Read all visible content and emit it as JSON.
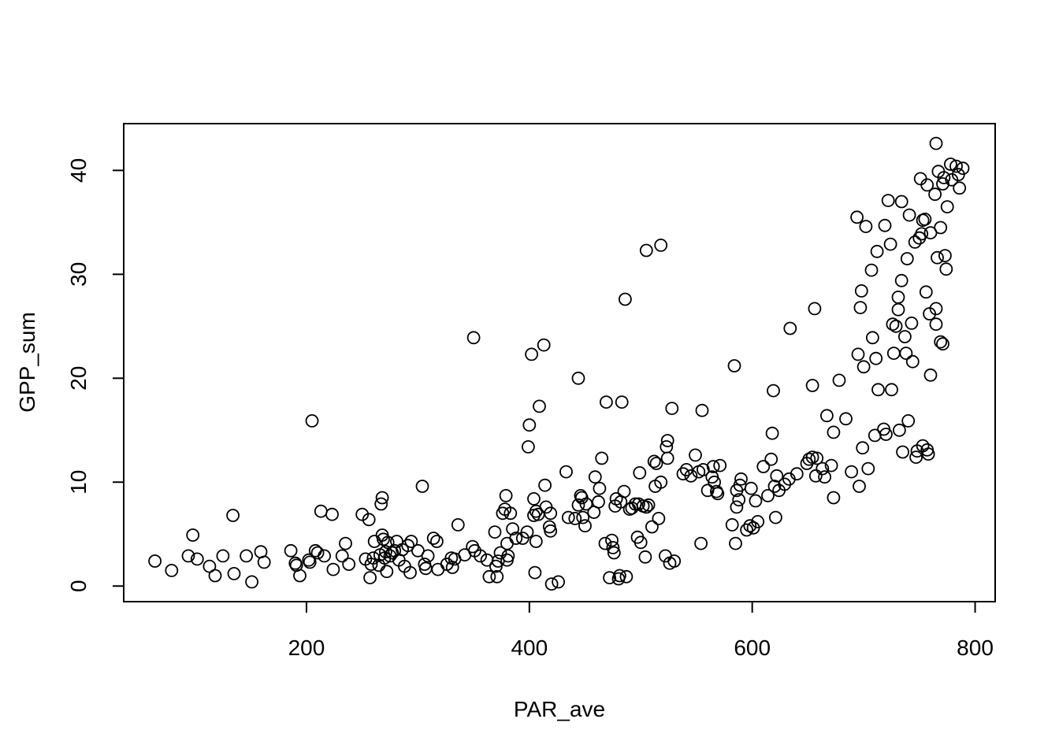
{
  "chart_data": {
    "type": "scatter",
    "title": "",
    "xlabel": "PAR_ave",
    "ylabel": "GPP_sum",
    "xlim": [
      36,
      818
    ],
    "ylim": [
      -1.5,
      44.5
    ],
    "x_ticks": [
      200,
      400,
      600,
      800
    ],
    "y_ticks": [
      0,
      10,
      20,
      30,
      40
    ],
    "x_tick_labels": [
      "200",
      "400",
      "600",
      "800"
    ],
    "y_tick_labels": [
      "0",
      "10",
      "20",
      "30",
      "40"
    ],
    "grid": false,
    "legend": "none",
    "marker": "open-circle",
    "colors": {
      "marker": "#000000",
      "axes": "#000000",
      "background": "#ffffff"
    },
    "series": [
      {
        "points": [
          [
            64,
            2.4
          ],
          [
            79,
            1.5
          ],
          [
            94,
            2.9
          ],
          [
            98,
            4.9
          ],
          [
            102,
            2.6
          ],
          [
            113,
            1.9
          ],
          [
            118,
            1.0
          ],
          [
            125,
            2.9
          ],
          [
            134,
            6.8
          ],
          [
            135,
            1.2
          ],
          [
            146,
            2.9
          ],
          [
            151,
            0.4
          ],
          [
            159,
            3.3
          ],
          [
            162,
            2.3
          ],
          [
            186,
            3.4
          ],
          [
            190,
            2.2
          ],
          [
            191,
            2.0
          ],
          [
            194,
            1.0
          ],
          [
            202,
            2.5
          ],
          [
            203,
            2.3
          ],
          [
            205,
            15.9
          ],
          [
            208,
            3.4
          ],
          [
            210,
            3.2
          ],
          [
            213,
            7.2
          ],
          [
            216,
            2.9
          ],
          [
            223,
            6.9
          ],
          [
            224,
            1.6
          ],
          [
            232,
            2.9
          ],
          [
            235,
            4.1
          ],
          [
            238,
            2.1
          ],
          [
            250,
            6.9
          ],
          [
            253,
            2.6
          ],
          [
            256,
            6.4
          ],
          [
            257,
            0.8
          ],
          [
            258,
            2.1
          ],
          [
            260,
            2.7
          ],
          [
            261,
            4.3
          ],
          [
            265,
            2.0
          ],
          [
            266,
            3.0
          ],
          [
            267,
            7.9
          ],
          [
            268,
            4.9
          ],
          [
            268,
            8.5
          ],
          [
            269,
            4.5
          ],
          [
            270,
            2.7
          ],
          [
            271,
            3.3
          ],
          [
            272,
            1.4
          ],
          [
            273,
            4.2
          ],
          [
            275,
            2.9
          ],
          [
            277,
            3.2
          ],
          [
            279,
            3.4
          ],
          [
            281,
            4.3
          ],
          [
            283,
            2.5
          ],
          [
            286,
            3.5
          ],
          [
            288,
            1.9
          ],
          [
            291,
            3.9
          ],
          [
            293,
            1.3
          ],
          [
            294,
            4.3
          ],
          [
            300,
            3.4
          ],
          [
            304,
            9.6
          ],
          [
            306,
            2.1
          ],
          [
            307,
            1.7
          ],
          [
            309,
            2.9
          ],
          [
            314,
            4.6
          ],
          [
            317,
            4.3
          ],
          [
            318,
            1.6
          ],
          [
            326,
            2.1
          ],
          [
            330,
            2.7
          ],
          [
            331,
            1.8
          ],
          [
            333,
            2.6
          ],
          [
            336,
            5.9
          ],
          [
            342,
            3.0
          ],
          [
            349,
            3.8
          ],
          [
            350,
            23.9
          ],
          [
            351,
            3.4
          ],
          [
            356,
            2.9
          ],
          [
            362,
            2.5
          ],
          [
            364,
            0.9
          ],
          [
            369,
            5.2
          ],
          [
            370,
            1.9
          ],
          [
            371,
            0.9
          ],
          [
            372,
            2.4
          ],
          [
            374,
            3.2
          ],
          [
            376,
            7.0
          ],
          [
            378,
            7.4
          ],
          [
            379,
            8.7
          ],
          [
            380,
            2.5
          ],
          [
            380,
            4.1
          ],
          [
            381,
            2.9
          ],
          [
            383,
            7.0
          ],
          [
            385,
            5.5
          ],
          [
            388,
            4.6
          ],
          [
            394,
            4.6
          ],
          [
            398,
            5.2
          ],
          [
            399,
            13.4
          ],
          [
            400,
            15.5
          ],
          [
            402,
            22.3
          ],
          [
            404,
            6.8
          ],
          [
            404,
            8.4
          ],
          [
            405,
            1.3
          ],
          [
            406,
            7.2
          ],
          [
            406,
            4.3
          ],
          [
            408,
            6.9
          ],
          [
            409,
            17.3
          ],
          [
            413,
            23.2
          ],
          [
            414,
            9.7
          ],
          [
            415,
            7.6
          ],
          [
            418,
            5.7
          ],
          [
            419,
            5.3
          ],
          [
            419,
            7.0
          ],
          [
            420,
            0.2
          ],
          [
            426,
            0.4
          ],
          [
            433,
            11.0
          ],
          [
            435,
            6.6
          ],
          [
            441,
            6.5
          ],
          [
            444,
            20.0
          ],
          [
            444,
            7.8
          ],
          [
            446,
            8.7
          ],
          [
            447,
            8.5
          ],
          [
            448,
            6.6
          ],
          [
            450,
            5.8
          ],
          [
            451,
            7.9
          ],
          [
            458,
            7.1
          ],
          [
            459,
            10.5
          ],
          [
            462,
            8.1
          ],
          [
            463,
            9.4
          ],
          [
            465,
            12.3
          ],
          [
            468,
            4.1
          ],
          [
            469,
            17.7
          ],
          [
            472,
            0.8
          ],
          [
            474,
            4.4
          ],
          [
            475,
            3.7
          ],
          [
            476,
            3.2
          ],
          [
            477,
            7.7
          ],
          [
            478,
            8.4
          ],
          [
            480,
            0.7
          ],
          [
            481,
            1.0
          ],
          [
            482,
            8.1
          ],
          [
            483,
            17.7
          ],
          [
            485,
            9.1
          ],
          [
            486,
            27.6
          ],
          [
            487,
            0.9
          ],
          [
            490,
            7.4
          ],
          [
            492,
            7.5
          ],
          [
            495,
            7.9
          ],
          [
            497,
            4.7
          ],
          [
            498,
            7.9
          ],
          [
            499,
            10.9
          ],
          [
            500,
            4.2
          ],
          [
            502,
            7.7
          ],
          [
            504,
            2.8
          ],
          [
            505,
            7.6
          ],
          [
            505,
            32.3
          ],
          [
            507,
            7.8
          ],
          [
            510,
            5.7
          ],
          [
            512,
            12.0
          ],
          [
            513,
            9.6
          ],
          [
            514,
            11.8
          ],
          [
            516,
            6.5
          ],
          [
            518,
            32.8
          ],
          [
            518,
            10.0
          ],
          [
            522,
            2.9
          ],
          [
            523,
            13.4
          ],
          [
            524,
            14.0
          ],
          [
            524,
            12.3
          ],
          [
            526,
            2.2
          ],
          [
            528,
            17.1
          ],
          [
            530,
            2.4
          ],
          [
            538,
            10.8
          ],
          [
            541,
            11.2
          ],
          [
            545,
            10.6
          ],
          [
            549,
            12.6
          ],
          [
            552,
            11.0
          ],
          [
            554,
            4.1
          ],
          [
            555,
            16.9
          ],
          [
            556,
            11.2
          ],
          [
            560,
            9.2
          ],
          [
            564,
            10.5
          ],
          [
            565,
            11.5
          ],
          [
            566,
            10.0
          ],
          [
            568,
            9.1
          ],
          [
            569,
            8.9
          ],
          [
            571,
            11.6
          ],
          [
            582,
            5.9
          ],
          [
            584,
            21.2
          ],
          [
            585,
            4.1
          ],
          [
            586,
            7.6
          ],
          [
            586,
            9.2
          ],
          [
            588,
            8.3
          ],
          [
            589,
            9.7
          ],
          [
            590,
            10.3
          ],
          [
            595,
            5.4
          ],
          [
            598,
            5.8
          ],
          [
            599,
            9.4
          ],
          [
            601,
            5.6
          ],
          [
            603,
            8.2
          ],
          [
            605,
            6.2
          ],
          [
            610,
            11.5
          ],
          [
            614,
            8.7
          ],
          [
            617,
            12.2
          ],
          [
            618,
            14.7
          ],
          [
            619,
            18.8
          ],
          [
            620,
            9.6
          ],
          [
            621,
            6.6
          ],
          [
            622,
            10.6
          ],
          [
            624,
            9.2
          ],
          [
            629,
            9.8
          ],
          [
            633,
            10.3
          ],
          [
            634,
            24.8
          ],
          [
            640,
            10.8
          ],
          [
            649,
            11.8
          ],
          [
            651,
            12.2
          ],
          [
            654,
            12.4
          ],
          [
            654,
            19.3
          ],
          [
            656,
            26.7
          ],
          [
            657,
            10.6
          ],
          [
            658,
            12.3
          ],
          [
            663,
            11.3
          ],
          [
            665,
            10.5
          ],
          [
            667,
            16.4
          ],
          [
            671,
            11.6
          ],
          [
            673,
            8.5
          ],
          [
            673,
            14.8
          ],
          [
            678,
            19.8
          ],
          [
            684,
            16.1
          ],
          [
            689,
            11.0
          ],
          [
            694,
            35.5
          ],
          [
            695,
            22.3
          ],
          [
            696,
            9.6
          ],
          [
            697,
            26.8
          ],
          [
            698,
            28.4
          ],
          [
            699,
            13.3
          ],
          [
            700,
            21.1
          ],
          [
            702,
            34.6
          ],
          [
            704,
            11.3
          ],
          [
            707,
            30.4
          ],
          [
            708,
            23.9
          ],
          [
            710,
            14.5
          ],
          [
            711,
            21.9
          ],
          [
            712,
            32.2
          ],
          [
            713,
            18.9
          ],
          [
            718,
            15.1
          ],
          [
            719,
            34.7
          ],
          [
            720,
            14.6
          ],
          [
            722,
            37.1
          ],
          [
            724,
            32.9
          ],
          [
            725,
            18.9
          ],
          [
            726,
            25.2
          ],
          [
            727,
            22.4
          ],
          [
            729,
            25.0
          ],
          [
            731,
            27.8
          ],
          [
            731,
            26.6
          ],
          [
            732,
            15.0
          ],
          [
            734,
            29.4
          ],
          [
            734,
            37.0
          ],
          [
            735,
            12.9
          ],
          [
            737,
            24.0
          ],
          [
            738,
            22.4
          ],
          [
            739,
            31.5
          ],
          [
            740,
            15.9
          ],
          [
            741,
            35.7
          ],
          [
            743,
            25.3
          ],
          [
            744,
            21.6
          ],
          [
            746,
            33.1
          ],
          [
            747,
            12.4
          ],
          [
            748,
            13.0
          ],
          [
            750,
            33.5
          ],
          [
            751,
            39.2
          ],
          [
            752,
            33.9
          ],
          [
            753,
            13.5
          ],
          [
            753,
            35.2
          ],
          [
            755,
            35.3
          ],
          [
            756,
            28.3
          ],
          [
            757,
            13.1
          ],
          [
            757,
            38.6
          ],
          [
            758,
            12.7
          ],
          [
            759,
            26.2
          ],
          [
            760,
            34.0
          ],
          [
            760,
            20.3
          ],
          [
            764,
            37.7
          ],
          [
            765,
            25.2
          ],
          [
            765,
            26.7
          ],
          [
            765,
            42.6
          ],
          [
            766,
            31.6
          ],
          [
            767,
            39.9
          ],
          [
            769,
            34.5
          ],
          [
            769,
            23.5
          ],
          [
            771,
            38.7
          ],
          [
            771,
            23.3
          ],
          [
            772,
            39.3
          ],
          [
            773,
            31.8
          ],
          [
            774,
            30.5
          ],
          [
            775,
            36.5
          ],
          [
            778,
            40.6
          ],
          [
            779,
            39.1
          ],
          [
            783,
            40.4
          ],
          [
            785,
            39.6
          ],
          [
            786,
            38.3
          ],
          [
            789,
            40.2
          ]
        ]
      }
    ]
  }
}
